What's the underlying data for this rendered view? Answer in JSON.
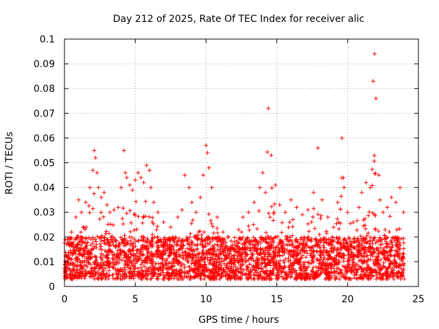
{
  "chart_data": {
    "type": "scatter",
    "title": "Day 212 of 2025, Rate Of TEC Index for receiver alic",
    "xlabel": "GPS time / hours",
    "ylabel": "ROTI / TECUs",
    "xlim": [
      0,
      25
    ],
    "ylim": [
      0,
      0.1
    ],
    "xticks": [
      "0",
      "5",
      "10",
      "15",
      "20",
      "25"
    ],
    "yticks": [
      "0",
      "0.01",
      "0.02",
      "0.03",
      "0.04",
      "0.05",
      "0.06",
      "0.07",
      "0.08",
      "0.09",
      "0.1"
    ],
    "grid": true,
    "marker": "+",
    "color": "#ff0000",
    "series": [
      {
        "x": [
          0.1,
          0.3,
          0.5,
          0.8,
          1.0,
          1.2,
          1.5,
          1.8,
          2.0,
          2.1,
          2.2,
          2.3,
          2.4,
          2.6,
          2.8,
          3.0,
          3.2,
          3.5,
          3.8,
          4.0,
          4.2,
          4.3,
          4.4,
          4.6,
          4.8,
          5.0,
          5.2,
          5.4,
          5.6,
          5.8,
          6.0,
          6.1,
          6.3,
          6.6,
          7.0,
          7.5,
          8.0,
          8.3,
          8.5,
          8.8,
          9.0,
          9.3,
          9.6,
          9.8,
          10.0,
          10.1,
          10.2,
          10.4,
          10.8,
          11.2,
          11.6,
          12.0,
          12.3,
          12.6,
          13.0,
          13.4,
          13.8,
          14.0,
          14.2,
          14.4,
          14.6,
          14.9,
          15.2,
          15.6,
          16.0,
          16.4,
          16.8,
          17.2,
          17.6,
          17.9,
          18.2,
          18.6,
          19.0,
          19.3,
          19.6,
          20.0,
          20.4,
          20.8,
          21.0,
          21.3,
          21.6,
          21.8,
          21.9,
          22.0,
          22.2,
          22.5,
          22.8,
          23.1,
          23.4,
          23.7,
          23.95
        ],
        "y": [
          0.012,
          0.018,
          0.022,
          0.028,
          0.035,
          0.03,
          0.034,
          0.04,
          0.047,
          0.055,
          0.052,
          0.046,
          0.04,
          0.036,
          0.038,
          0.033,
          0.03,
          0.031,
          0.032,
          0.04,
          0.055,
          0.046,
          0.044,
          0.041,
          0.039,
          0.043,
          0.046,
          0.044,
          0.042,
          0.049,
          0.047,
          0.04,
          0.034,
          0.03,
          0.026,
          0.024,
          0.028,
          0.031,
          0.045,
          0.04,
          0.034,
          0.03,
          0.036,
          0.045,
          0.057,
          0.054,
          0.048,
          0.04,
          0.028,
          0.022,
          0.02,
          0.018,
          0.023,
          0.028,
          0.03,
          0.034,
          0.04,
          0.046,
          0.038,
          0.072,
          0.053,
          0.041,
          0.033,
          0.03,
          0.035,
          0.032,
          0.029,
          0.031,
          0.038,
          0.056,
          0.035,
          0.028,
          0.024,
          0.034,
          0.06,
          0.03,
          0.026,
          0.032,
          0.038,
          0.042,
          0.04,
          0.083,
          0.094,
          0.076,
          0.045,
          0.03,
          0.032,
          0.036,
          0.034,
          0.04,
          0.03
        ]
      }
    ]
  }
}
